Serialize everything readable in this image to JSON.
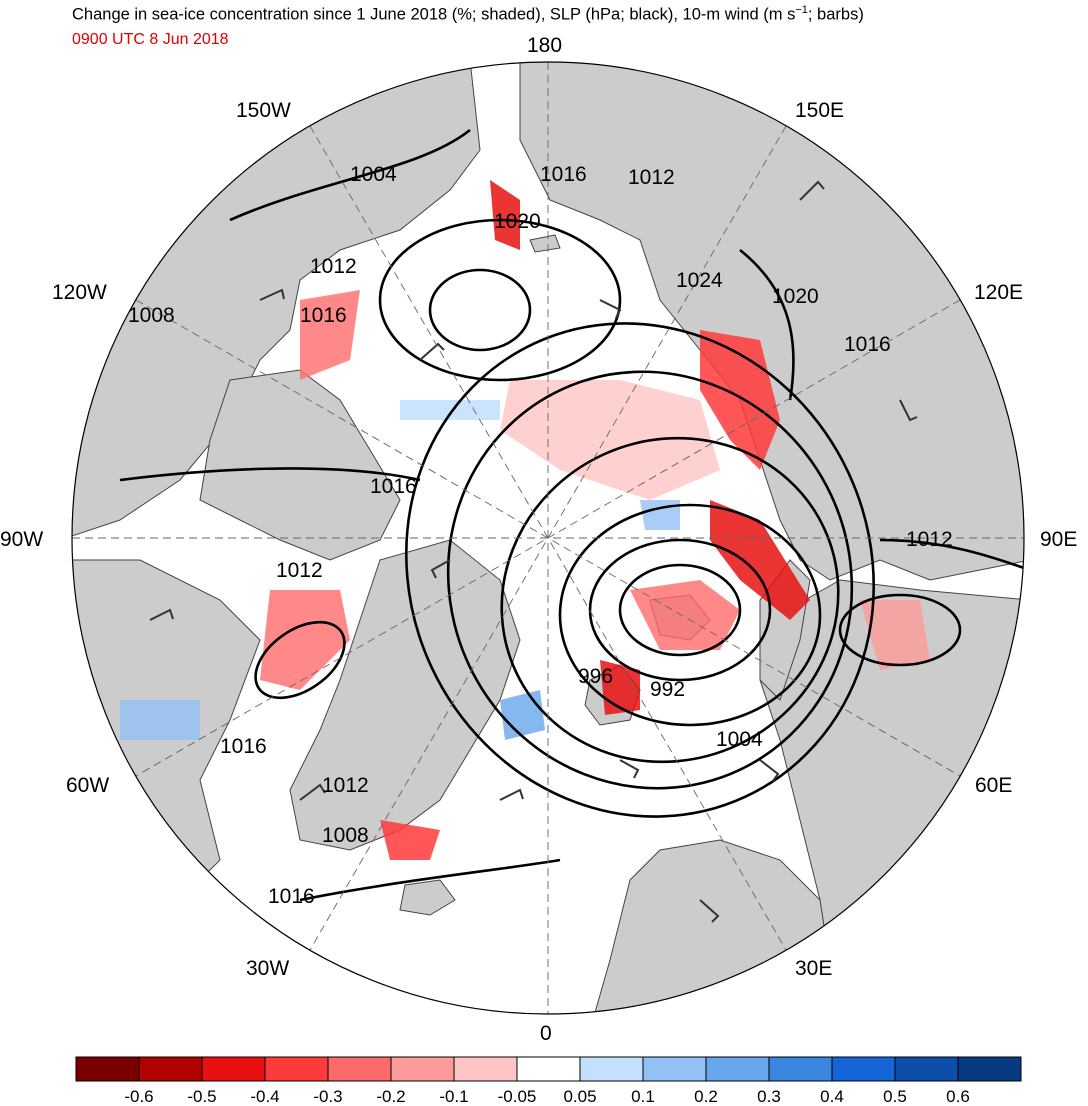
{
  "title_main": "Change in sea-ice concentration since 1 June 2018 (%; shaded), SLP (hPa; black), 10-m wind (m s",
  "title_sup": "−1",
  "title_end": "; barbs)",
  "subtitle": "0900 UTC 8 Jun 2018",
  "colors": {
    "land": "#cccccc",
    "ocean": "#ffffff",
    "contour": "#000000",
    "subtitle": "#e00000"
  },
  "longitude_labels": {
    "lon_180": "180",
    "lon_150w": "150W",
    "lon_150e": "150E",
    "lon_120w": "120W",
    "lon_120e": "120E",
    "lon_90w": "90W",
    "lon_90e": "90E",
    "lon_60w": "60W",
    "lon_60e": "60E",
    "lon_30w": "30W",
    "lon_30e": "30E",
    "lon_0": "0"
  },
  "slp_labels": {
    "l1004a": "1004",
    "l1016a": "1016",
    "l1012a": "1012",
    "l1020a": "1020",
    "l1012b": "1012",
    "l1024": "1024",
    "l1020b": "1020",
    "l1008a": "1008",
    "l1016b": "1016",
    "l1016c": "1016",
    "l1016d": "1016",
    "l1012c": "1012",
    "l1012d": "1012",
    "l996": "996",
    "l992": "992",
    "l1004b": "1004",
    "l1016e": "1016",
    "l1012e": "1012",
    "l1008b": "1008",
    "l1016f": "1016"
  },
  "colorbar": {
    "colors": [
      "#7a0000",
      "#b20000",
      "#e81010",
      "#ff3a3a",
      "#ff6a6a",
      "#ff9a9a",
      "#ffc4c4",
      "#ffffff",
      "#c4e0ff",
      "#92c2f5",
      "#66a6ea",
      "#3a86e0",
      "#1466d8",
      "#0c4ea8",
      "#083a80"
    ],
    "labels": [
      "-0.6",
      "-0.5",
      "-0.4",
      "-0.3",
      "-0.2",
      "-0.1",
      "-0.05",
      "0.05",
      "0.1",
      "0.2",
      "0.3",
      "0.4",
      "0.5",
      "0.6"
    ]
  }
}
